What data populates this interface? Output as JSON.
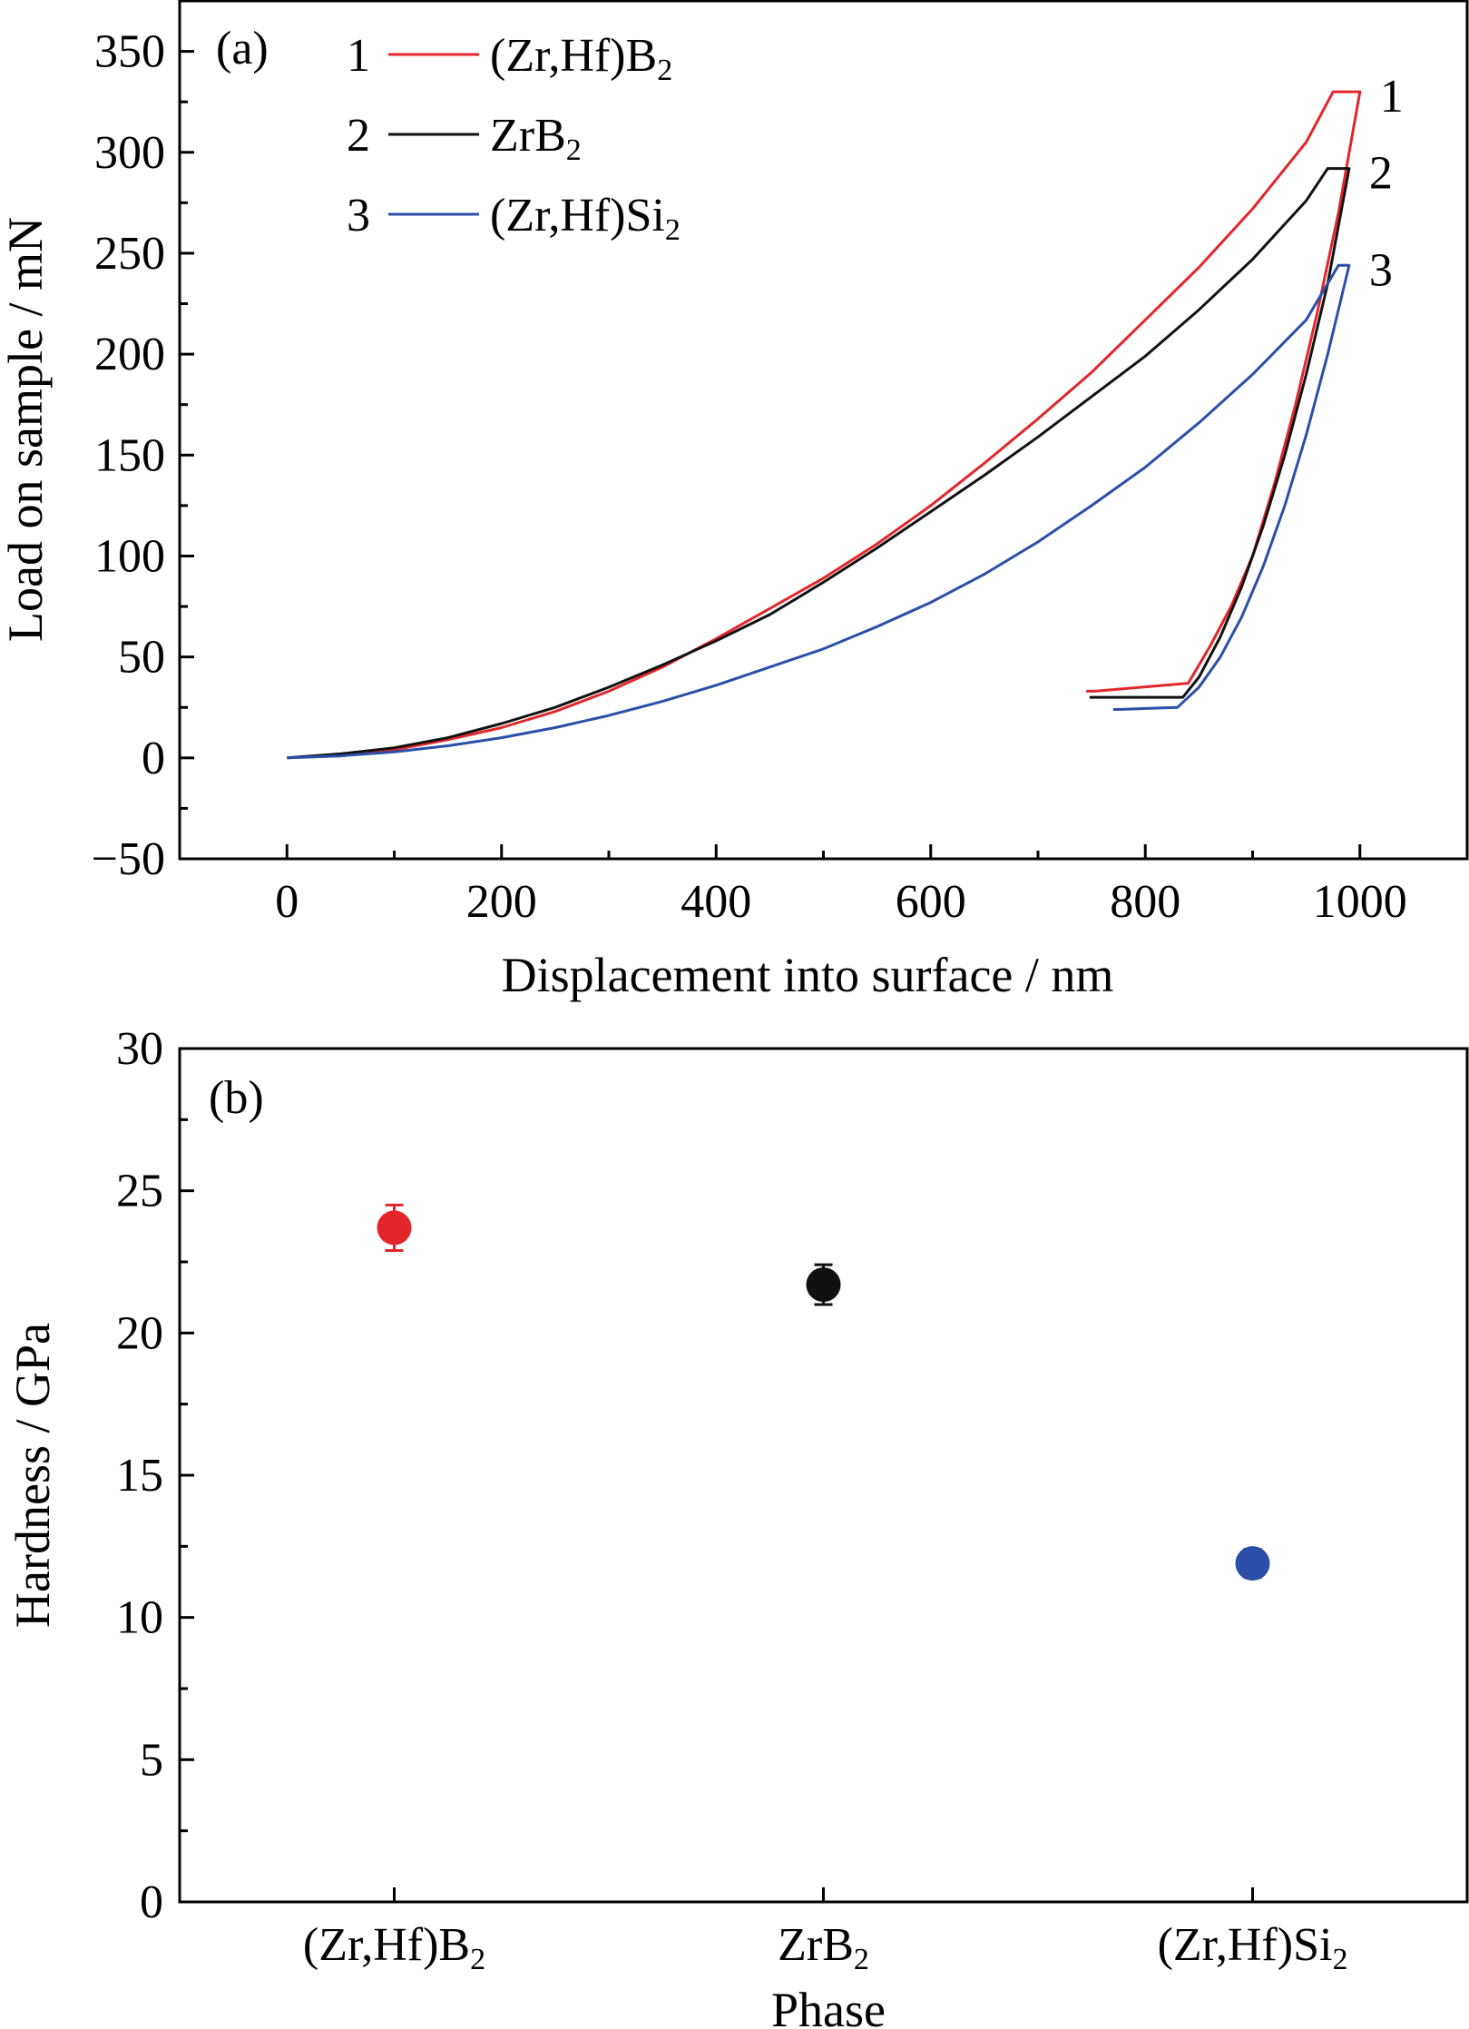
{
  "chart_data": [
    {
      "type": "line",
      "panel_label": "(a)",
      "xlabel": "Displacement into surface / nm",
      "ylabel": "Load on sample / mN",
      "xlim": [
        -100,
        1100
      ],
      "ylim": [
        -50,
        375
      ],
      "xticks": [
        0,
        200,
        400,
        600,
        800,
        1000
      ],
      "yticks": [
        -50,
        0,
        50,
        100,
        150,
        200,
        250,
        300,
        350
      ],
      "grid": false,
      "legend_position": "top-left",
      "series": [
        {
          "id": "1",
          "name": "(Zr,Hf)B",
          "name_sub": "2",
          "color": "#e3262b",
          "loading": [
            [
              0,
              0
            ],
            [
              50,
              1
            ],
            [
              100,
              4
            ],
            [
              150,
              9
            ],
            [
              200,
              15
            ],
            [
              250,
              23
            ],
            [
              300,
              33
            ],
            [
              350,
              45
            ],
            [
              400,
              59
            ],
            [
              450,
              74
            ],
            [
              500,
              89
            ],
            [
              550,
              106
            ],
            [
              600,
              125
            ],
            [
              650,
              146
            ],
            [
              700,
              168
            ],
            [
              750,
              191
            ],
            [
              800,
              217
            ],
            [
              850,
              243
            ],
            [
              900,
              272
            ],
            [
              950,
              305
            ],
            [
              975,
              330
            ]
          ],
          "hold": [
            [
              975,
              330
            ],
            [
              1000,
              330
            ]
          ],
          "unloading": [
            [
              1000,
              330
            ],
            [
              980,
              270
            ],
            [
              960,
              220
            ],
            [
              940,
              175
            ],
            [
              920,
              135
            ],
            [
              900,
              100
            ],
            [
              880,
              75
            ],
            [
              860,
              55
            ],
            [
              840,
              37
            ],
            [
              753,
              33
            ]
          ],
          "end": [
            745,
            33
          ]
        },
        {
          "id": "2",
          "name": "ZrB",
          "name_sub": "2",
          "color": "#111111",
          "loading": [
            [
              0,
              0
            ],
            [
              50,
              2
            ],
            [
              100,
              5
            ],
            [
              150,
              10
            ],
            [
              200,
              17
            ],
            [
              250,
              25
            ],
            [
              300,
              35
            ],
            [
              350,
              46
            ],
            [
              400,
              58
            ],
            [
              450,
              71
            ],
            [
              500,
              87
            ],
            [
              550,
              104
            ],
            [
              600,
              122
            ],
            [
              650,
              140
            ],
            [
              700,
              159
            ],
            [
              750,
              179
            ],
            [
              800,
              199
            ],
            [
              850,
              222
            ],
            [
              900,
              247
            ],
            [
              950,
              276
            ],
            [
              970,
              292
            ]
          ],
          "hold": [
            [
              970,
              292
            ],
            [
              990,
              292
            ]
          ],
          "unloading": [
            [
              990,
              292
            ],
            [
              970,
              235
            ],
            [
              950,
              190
            ],
            [
              930,
              150
            ],
            [
              910,
              115
            ],
            [
              890,
              85
            ],
            [
              870,
              60
            ],
            [
              850,
              40
            ],
            [
              835,
              30
            ],
            [
              755,
              30
            ]
          ],
          "end": [
            748,
            30
          ]
        },
        {
          "id": "3",
          "name": "(Zr,Hf)Si",
          "name_sub": "2",
          "color": "#2b4fa8",
          "loading": [
            [
              0,
              0
            ],
            [
              50,
              1
            ],
            [
              100,
              3
            ],
            [
              150,
              6
            ],
            [
              200,
              10
            ],
            [
              250,
              15
            ],
            [
              300,
              21
            ],
            [
              350,
              28
            ],
            [
              400,
              36
            ],
            [
              450,
              45
            ],
            [
              500,
              54
            ],
            [
              550,
              65
            ],
            [
              600,
              77
            ],
            [
              650,
              91
            ],
            [
              700,
              107
            ],
            [
              750,
              125
            ],
            [
              800,
              144
            ],
            [
              850,
              166
            ],
            [
              900,
              190
            ],
            [
              950,
              217
            ],
            [
              980,
              244
            ]
          ],
          "hold": [
            [
              980,
              244
            ],
            [
              990,
              244
            ]
          ],
          "unloading": [
            [
              990,
              244
            ],
            [
              970,
              200
            ],
            [
              950,
              160
            ],
            [
              930,
              125
            ],
            [
              910,
              95
            ],
            [
              890,
              70
            ],
            [
              870,
              50
            ],
            [
              850,
              35
            ],
            [
              830,
              25
            ],
            [
              775,
              24
            ]
          ],
          "end": [
            770,
            24
          ]
        }
      ]
    },
    {
      "type": "scatter",
      "panel_label": "(b)",
      "xlabel": "Phase",
      "ylabel": "Hardness / GPa",
      "ylim": [
        0,
        30
      ],
      "yticks": [
        0,
        5,
        10,
        15,
        20,
        25,
        30
      ],
      "grid": false,
      "categories": [
        {
          "main": "(Zr,Hf)B",
          "sub": "2"
        },
        {
          "main": "ZrB",
          "sub": "2"
        },
        {
          "main": "(Zr,Hf)Si",
          "sub": "2"
        }
      ],
      "values": [
        23.7,
        21.7,
        11.9
      ],
      "errors": [
        0.8,
        0.7,
        0.5
      ],
      "colors": [
        "#e3262b",
        "#111111",
        "#2b4fa8"
      ]
    }
  ]
}
